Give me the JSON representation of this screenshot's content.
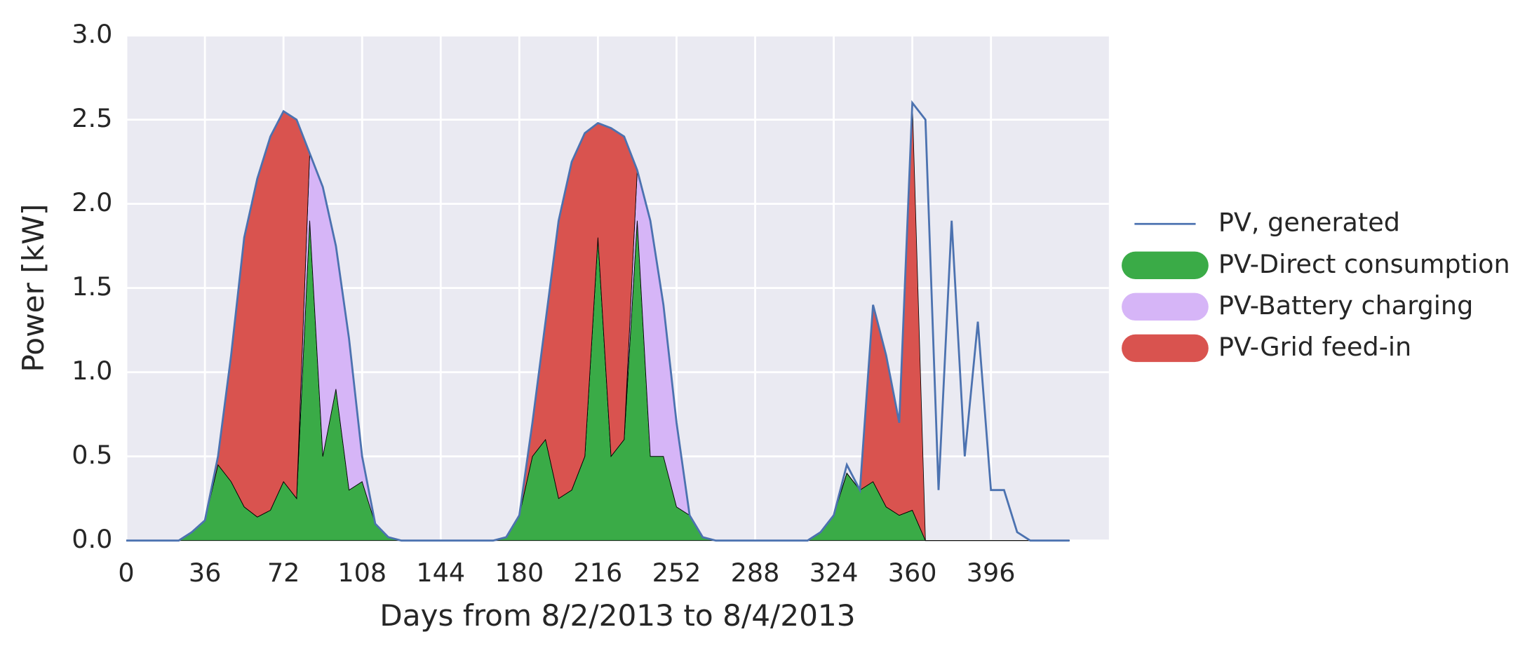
{
  "chart_data": {
    "type": "area",
    "xlabel": "Days from 8/2/2013 to 8/4/2013",
    "ylabel": "Power [kW]",
    "xlim": [
      0,
      450
    ],
    "ylim": [
      0,
      3
    ],
    "xticks": [
      0,
      36,
      72,
      108,
      144,
      180,
      216,
      252,
      288,
      324,
      360,
      396
    ],
    "yticks": [
      {
        "value": 0,
        "label": "0.0"
      },
      0.5,
      {
        "value": 1,
        "label": "1.0"
      },
      1.5,
      {
        "value": 2,
        "label": "2.0"
      },
      2.5,
      {
        "value": 3,
        "label": "3.0"
      }
    ],
    "grid": true,
    "legend": "right",
    "x": [
      0,
      6,
      12,
      18,
      24,
      30,
      36,
      42,
      48,
      54,
      60,
      66,
      72,
      78,
      84,
      90,
      96,
      102,
      108,
      114,
      120,
      126,
      132,
      138,
      144,
      150,
      156,
      162,
      168,
      174,
      180,
      186,
      192,
      198,
      204,
      210,
      216,
      222,
      228,
      234,
      240,
      246,
      252,
      258,
      264,
      270,
      276,
      282,
      288,
      294,
      300,
      306,
      312,
      318,
      324,
      330,
      336,
      342,
      348,
      354,
      360,
      366,
      372,
      378,
      384,
      390,
      396,
      402,
      408,
      414,
      420,
      426,
      432
    ],
    "series": [
      {
        "name": "PV, generated",
        "style": "line",
        "color": "#4c72b0",
        "values": [
          0,
          0,
          0,
          0,
          0,
          0.05,
          0.12,
          0.5,
          1.1,
          1.8,
          2.15,
          2.4,
          2.55,
          2.5,
          2.3,
          2.1,
          1.75,
          1.2,
          0.5,
          0.1,
          0.02,
          0,
          0,
          0,
          0,
          0,
          0,
          0,
          0,
          0.02,
          0.15,
          0.7,
          1.3,
          1.9,
          2.25,
          2.42,
          2.48,
          2.45,
          2.4,
          2.2,
          1.9,
          1.4,
          0.7,
          0.15,
          0.02,
          0,
          0,
          0,
          0,
          0,
          0,
          0,
          0,
          0.05,
          0.15,
          0.45,
          0.3,
          1.4,
          1.1,
          0.7,
          2.6,
          2.5,
          0.3,
          1.9,
          0.5,
          1.3,
          0.3,
          0.3,
          0.05,
          0,
          0,
          0,
          0
        ]
      },
      {
        "name": "PV-Direct consumption",
        "style": "area",
        "color": "#3aab47",
        "values": [
          0,
          0,
          0,
          0,
          0,
          0.05,
          0.12,
          0.45,
          0.35,
          0.2,
          0.14,
          0.18,
          0.35,
          0.25,
          1.9,
          0.5,
          0.9,
          0.3,
          0.35,
          0.1,
          0.02,
          0,
          0,
          0,
          0,
          0,
          0,
          0,
          0,
          0.02,
          0.15,
          0.5,
          0.6,
          0.25,
          0.3,
          0.5,
          1.8,
          0.5,
          0.6,
          1.9,
          0.5,
          0.5,
          0.2,
          0.15,
          0.02,
          0,
          0,
          0,
          0,
          0,
          0,
          0,
          0,
          0.05,
          0.15,
          0.4,
          0.3,
          0.35,
          0.2,
          0.15,
          0.18,
          0,
          0,
          0,
          0,
          0,
          0,
          0,
          0,
          0,
          0,
          0,
          0
        ]
      },
      {
        "name": "PV-Battery charging",
        "style": "area",
        "color": "#d6b5f7",
        "values": [
          0,
          0,
          0,
          0,
          0,
          0,
          0,
          0,
          0,
          0,
          0,
          0,
          0,
          0,
          0.4,
          1.6,
          0.85,
          0.9,
          0.15,
          0,
          0,
          0,
          0,
          0,
          0,
          0,
          0,
          0,
          0,
          0,
          0,
          0,
          0,
          0,
          0,
          0,
          0,
          0,
          0,
          0.3,
          1.4,
          0.9,
          0.5,
          0,
          0,
          0,
          0,
          0,
          0,
          0,
          0,
          0,
          0,
          0,
          0,
          0,
          0,
          0,
          0,
          0,
          0,
          0,
          0,
          0,
          0,
          0,
          0,
          0,
          0,
          0,
          0,
          0,
          0
        ]
      },
      {
        "name": "PV-Grid feed-in",
        "style": "area",
        "color": "#d9534f",
        "values": [
          0,
          0,
          0,
          0,
          0,
          0,
          0,
          0.05,
          0.75,
          1.6,
          2.01,
          2.22,
          2.2,
          2.25,
          0,
          0,
          0,
          0,
          0,
          0,
          0,
          0,
          0,
          0,
          0,
          0,
          0,
          0,
          0,
          0,
          0,
          0.2,
          0.7,
          1.65,
          1.95,
          1.92,
          0.68,
          1.95,
          1.8,
          0,
          0,
          0,
          0,
          0,
          0,
          0,
          0,
          0,
          0,
          0,
          0,
          0,
          0,
          0,
          0,
          0,
          0,
          1.05,
          0.9,
          0.55,
          2.42,
          0,
          0,
          0,
          0,
          0,
          0,
          0,
          0,
          0,
          0,
          0,
          0
        ]
      }
    ]
  }
}
